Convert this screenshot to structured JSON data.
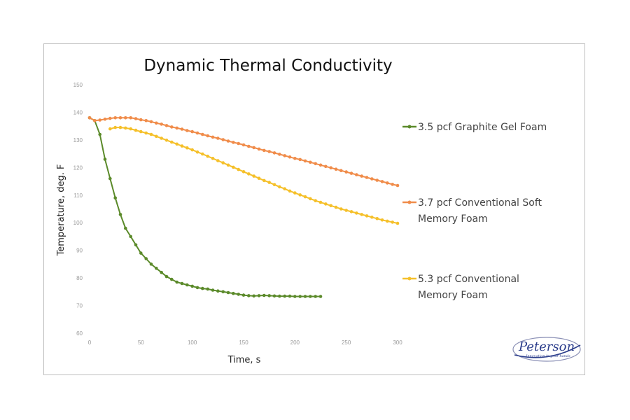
{
  "chart_data": {
    "type": "line",
    "title": "Dynamic Thermal Conductivity",
    "xlabel": "Time, s",
    "ylabel": "Temperature, deg. F",
    "xlim": [
      0,
      300
    ],
    "ylim": [
      60,
      150
    ],
    "xticks": [
      0,
      50,
      100,
      150,
      200,
      250,
      300
    ],
    "yticks": [
      60,
      70,
      80,
      90,
      100,
      110,
      120,
      130,
      140,
      150
    ],
    "grid": false,
    "legend": "right",
    "series": [
      {
        "name": "3.5 pcf Graphite Gel Foam",
        "legend_lines": [
          "3.5 pcf Graphite Gel Foam"
        ],
        "color": "#5b8a2a",
        "x": [
          0,
          5,
          10,
          15,
          20,
          25,
          30,
          35,
          40,
          45,
          50,
          55,
          60,
          65,
          70,
          75,
          80,
          85,
          90,
          95,
          100,
          105,
          110,
          115,
          120,
          125,
          130,
          135,
          140,
          145,
          150,
          155,
          160,
          165,
          170,
          175,
          180,
          185,
          190,
          195,
          200,
          205,
          210,
          215,
          220,
          225
        ],
        "y": [
          138,
          137,
          132,
          123,
          116,
          109,
          103,
          98,
          95,
          92,
          89,
          87,
          85,
          83.5,
          82,
          80.5,
          79.5,
          78.5,
          78,
          77.5,
          77,
          76.5,
          76.2,
          76,
          75.6,
          75.3,
          75,
          74.7,
          74.4,
          74.1,
          73.8,
          73.6,
          73.5,
          73.6,
          73.7,
          73.6,
          73.5,
          73.4,
          73.4,
          73.4,
          73.3,
          73.3,
          73.3,
          73.3,
          73.3,
          73.3
        ]
      },
      {
        "name": "3.7 pcf Conventional Soft Memory Foam",
        "legend_lines": [
          "3.7 pcf Conventional Soft",
          "Memory Foam"
        ],
        "color": "#f08c4a",
        "x": [
          0,
          5,
          10,
          15,
          20,
          25,
          30,
          35,
          40,
          45,
          50,
          55,
          60,
          65,
          70,
          75,
          80,
          85,
          90,
          95,
          100,
          105,
          110,
          115,
          120,
          125,
          130,
          135,
          140,
          145,
          150,
          155,
          160,
          165,
          170,
          175,
          180,
          185,
          190,
          195,
          200,
          205,
          210,
          215,
          220,
          225,
          230,
          235,
          240,
          245,
          250,
          255,
          260,
          265,
          270,
          275,
          280,
          285,
          290,
          295,
          300
        ],
        "y": [
          138,
          137,
          137.2,
          137.5,
          137.8,
          138,
          138,
          138,
          138,
          137.7,
          137.3,
          137,
          136.6,
          136.1,
          135.7,
          135.2,
          134.7,
          134.3,
          133.9,
          133.4,
          133,
          132.5,
          132,
          131.5,
          131,
          130.6,
          130.1,
          129.6,
          129.1,
          128.7,
          128.2,
          127.7,
          127.2,
          126.7,
          126.2,
          125.8,
          125.3,
          124.8,
          124.3,
          123.8,
          123.3,
          122.9,
          122.4,
          121.9,
          121.4,
          120.9,
          120.4,
          119.9,
          119.4,
          118.9,
          118.4,
          117.9,
          117.4,
          116.9,
          116.4,
          115.9,
          115.4,
          114.9,
          114.4,
          113.9,
          113.5
        ]
      },
      {
        "name": "5.3 pcf Conventional Memory Foam",
        "legend_lines": [
          "5.3 pcf Conventional",
          "Memory Foam"
        ],
        "color": "#f5c02a",
        "x": [
          20,
          25,
          30,
          35,
          40,
          45,
          50,
          55,
          60,
          65,
          70,
          75,
          80,
          85,
          90,
          95,
          100,
          105,
          110,
          115,
          120,
          125,
          130,
          135,
          140,
          145,
          150,
          155,
          160,
          165,
          170,
          175,
          180,
          185,
          190,
          195,
          200,
          205,
          210,
          215,
          220,
          225,
          230,
          235,
          240,
          245,
          250,
          255,
          260,
          265,
          270,
          275,
          280,
          285,
          290,
          295,
          300
        ],
        "y": [
          134,
          134.5,
          134.5,
          134.3,
          134,
          133.5,
          133,
          132.5,
          132,
          131.3,
          130.6,
          129.9,
          129.2,
          128.5,
          127.8,
          127.1,
          126.4,
          125.6,
          124.9,
          124.1,
          123.3,
          122.5,
          121.7,
          120.9,
          120.1,
          119.3,
          118.5,
          117.7,
          116.9,
          116.1,
          115.3,
          114.6,
          113.8,
          113,
          112.3,
          111.5,
          110.8,
          110.1,
          109.4,
          108.7,
          108,
          107.4,
          106.8,
          106.2,
          105.6,
          105,
          104.5,
          104,
          103.5,
          103,
          102.5,
          102,
          101.5,
          101,
          100.6,
          100.2,
          99.8
        ]
      }
    ]
  },
  "logo": {
    "name": "Peterson",
    "tagline": "Innovation in your hands"
  }
}
